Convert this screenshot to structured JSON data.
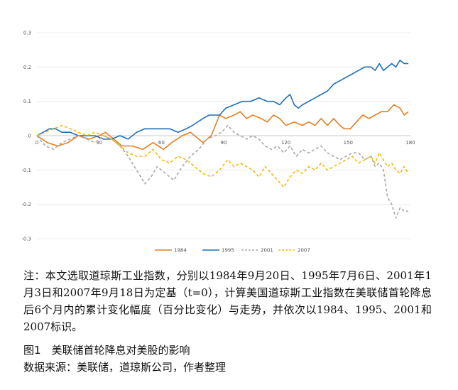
{
  "chart_data": {
    "type": "line",
    "x_ticks": [
      0,
      30,
      60,
      90,
      120,
      150,
      180
    ],
    "y_ticks": [
      0.3,
      0.2,
      0.1,
      0,
      -0.1,
      -0.2,
      -0.3
    ],
    "y_tick_labels": [
      "0.3",
      "0.2",
      "0.1",
      "0",
      "-0.1",
      "-0.2",
      "-0.3"
    ],
    "xlim": [
      0,
      180
    ],
    "ylim": [
      -0.3,
      0.3
    ],
    "grid": "horizontal",
    "legend_position": "bottom",
    "series": [
      {
        "name": "1984",
        "color": "#E67E22",
        "dash": "solid",
        "points": [
          [
            0,
            0
          ],
          [
            5,
            -0.02
          ],
          [
            10,
            -0.03
          ],
          [
            15,
            -0.02
          ],
          [
            20,
            0.0
          ],
          [
            25,
            -0.01
          ],
          [
            30,
            0.0
          ],
          [
            33,
            0.01
          ],
          [
            37,
            -0.01
          ],
          [
            41,
            -0.03
          ],
          [
            46,
            -0.03
          ],
          [
            51,
            -0.04
          ],
          [
            56,
            -0.02
          ],
          [
            61,
            -0.04
          ],
          [
            65,
            -0.02
          ],
          [
            70,
            0.0
          ],
          [
            74,
            0.01
          ],
          [
            78,
            -0.01
          ],
          [
            80,
            -0.02
          ],
          [
            84,
            0.0
          ],
          [
            88,
            0.06
          ],
          [
            91,
            0.05
          ],
          [
            95,
            0.06
          ],
          [
            98,
            0.07
          ],
          [
            101,
            0.05
          ],
          [
            104,
            0.06
          ],
          [
            108,
            0.05
          ],
          [
            111,
            0.04
          ],
          [
            114,
            0.06
          ],
          [
            117,
            0.05
          ],
          [
            120,
            0.03
          ],
          [
            124,
            0.04
          ],
          [
            128,
            0.03
          ],
          [
            131,
            0.04
          ],
          [
            134,
            0.03
          ],
          [
            137,
            0.05
          ],
          [
            140,
            0.03
          ],
          [
            143,
            0.05
          ],
          [
            146,
            0.03
          ],
          [
            148,
            0.02
          ],
          [
            151,
            0.02
          ],
          [
            154,
            0.04
          ],
          [
            157,
            0.06
          ],
          [
            160,
            0.05
          ],
          [
            163,
            0.06
          ],
          [
            166,
            0.07
          ],
          [
            169,
            0.07
          ],
          [
            172,
            0.09
          ],
          [
            175,
            0.08
          ],
          [
            177,
            0.06
          ],
          [
            179,
            0.07
          ]
        ]
      },
      {
        "name": "1995",
        "color": "#1F6FB9",
        "dash": "solid",
        "points": [
          [
            0,
            0
          ],
          [
            3,
            0.01
          ],
          [
            6,
            0.02
          ],
          [
            9,
            0.02
          ],
          [
            12,
            0.01
          ],
          [
            16,
            0.01
          ],
          [
            20,
            0.0
          ],
          [
            24,
            0.0
          ],
          [
            28,
            0.0
          ],
          [
            32,
            -0.01
          ],
          [
            36,
            -0.01
          ],
          [
            40,
            0.0
          ],
          [
            44,
            -0.01
          ],
          [
            48,
            0.01
          ],
          [
            52,
            0.02
          ],
          [
            56,
            0.02
          ],
          [
            60,
            0.02
          ],
          [
            64,
            0.02
          ],
          [
            68,
            0.01
          ],
          [
            72,
            0.02
          ],
          [
            75,
            0.03
          ],
          [
            80,
            0.05
          ],
          [
            83,
            0.06
          ],
          [
            86,
            0.06
          ],
          [
            88,
            0.06
          ],
          [
            91,
            0.08
          ],
          [
            95,
            0.09
          ],
          [
            99,
            0.1
          ],
          [
            103,
            0.1
          ],
          [
            107,
            0.11
          ],
          [
            111,
            0.1
          ],
          [
            114,
            0.1
          ],
          [
            117,
            0.09
          ],
          [
            120,
            0.11
          ],
          [
            122,
            0.12
          ],
          [
            124,
            0.09
          ],
          [
            126,
            0.08
          ],
          [
            128,
            0.09
          ],
          [
            131,
            0.1
          ],
          [
            134,
            0.11
          ],
          [
            137,
            0.12
          ],
          [
            140,
            0.13
          ],
          [
            143,
            0.15
          ],
          [
            146,
            0.16
          ],
          [
            149,
            0.17
          ],
          [
            152,
            0.18
          ],
          [
            155,
            0.19
          ],
          [
            158,
            0.2
          ],
          [
            161,
            0.2
          ],
          [
            163,
            0.19
          ],
          [
            165,
            0.21
          ],
          [
            167,
            0.19
          ],
          [
            169,
            0.2
          ],
          [
            171,
            0.21
          ],
          [
            173,
            0.2
          ],
          [
            175,
            0.22
          ],
          [
            177,
            0.21
          ],
          [
            179,
            0.21
          ]
        ]
      },
      {
        "name": "2001",
        "color": "#A9A9A9",
        "dash": "dashed",
        "points": [
          [
            0,
            0
          ],
          [
            4,
            -0.03
          ],
          [
            8,
            -0.04
          ],
          [
            12,
            -0.02
          ],
          [
            16,
            -0.01
          ],
          [
            20,
            0.0
          ],
          [
            24,
            -0.01
          ],
          [
            28,
            -0.02
          ],
          [
            32,
            0.0
          ],
          [
            36,
            -0.01
          ],
          [
            40,
            -0.03
          ],
          [
            44,
            -0.06
          ],
          [
            48,
            -0.1
          ],
          [
            52,
            -0.14
          ],
          [
            55,
            -0.12
          ],
          [
            58,
            -0.09
          ],
          [
            62,
            -0.11
          ],
          [
            66,
            -0.13
          ],
          [
            70,
            -0.09
          ],
          [
            74,
            -0.06
          ],
          [
            78,
            -0.04
          ],
          [
            82,
            -0.01
          ],
          [
            86,
            0.0
          ],
          [
            89,
            0.01
          ],
          [
            92,
            0.03
          ],
          [
            95,
            0.01
          ],
          [
            98,
            0.0
          ],
          [
            101,
            -0.01
          ],
          [
            104,
            0.0
          ],
          [
            107,
            -0.01
          ],
          [
            110,
            -0.03
          ],
          [
            113,
            -0.04
          ],
          [
            116,
            -0.03
          ],
          [
            119,
            -0.05
          ],
          [
            122,
            -0.03
          ],
          [
            125,
            -0.06
          ],
          [
            128,
            -0.04
          ],
          [
            131,
            -0.05
          ],
          [
            134,
            -0.04
          ],
          [
            137,
            -0.03
          ],
          [
            140,
            -0.05
          ],
          [
            143,
            -0.06
          ],
          [
            146,
            -0.07
          ],
          [
            149,
            -0.06
          ],
          [
            152,
            -0.05
          ],
          [
            155,
            -0.05
          ],
          [
            158,
            -0.07
          ],
          [
            161,
            -0.06
          ],
          [
            163,
            -0.09
          ],
          [
            165,
            -0.08
          ],
          [
            167,
            -0.1
          ],
          [
            169,
            -0.18
          ],
          [
            171,
            -0.2
          ],
          [
            173,
            -0.24
          ],
          [
            175,
            -0.21
          ],
          [
            177,
            -0.22
          ],
          [
            179,
            -0.22
          ]
        ]
      },
      {
        "name": "2007",
        "color": "#F2B80F",
        "dash": "dashed",
        "points": [
          [
            0,
            0
          ],
          [
            4,
            0.01
          ],
          [
            8,
            0.02
          ],
          [
            12,
            0.03
          ],
          [
            16,
            0.02
          ],
          [
            20,
            0.01
          ],
          [
            24,
            0.0
          ],
          [
            28,
            0.01
          ],
          [
            32,
            0.0
          ],
          [
            36,
            -0.01
          ],
          [
            40,
            -0.03
          ],
          [
            44,
            -0.05
          ],
          [
            48,
            -0.06
          ],
          [
            52,
            -0.06
          ],
          [
            56,
            -0.04
          ],
          [
            60,
            -0.07
          ],
          [
            64,
            -0.08
          ],
          [
            68,
            -0.06
          ],
          [
            72,
            -0.07
          ],
          [
            76,
            -0.09
          ],
          [
            80,
            -0.11
          ],
          [
            84,
            -0.12
          ],
          [
            88,
            -0.1
          ],
          [
            92,
            -0.07
          ],
          [
            95,
            -0.09
          ],
          [
            98,
            -0.08
          ],
          [
            101,
            -0.09
          ],
          [
            104,
            -0.1
          ],
          [
            107,
            -0.12
          ],
          [
            110,
            -0.09
          ],
          [
            113,
            -0.11
          ],
          [
            116,
            -0.13
          ],
          [
            119,
            -0.15
          ],
          [
            122,
            -0.12
          ],
          [
            125,
            -0.1
          ],
          [
            128,
            -0.11
          ],
          [
            131,
            -0.09
          ],
          [
            134,
            -0.1
          ],
          [
            137,
            -0.08
          ],
          [
            140,
            -0.1
          ],
          [
            143,
            -0.09
          ],
          [
            146,
            -0.08
          ],
          [
            149,
            -0.07
          ],
          [
            152,
            -0.06
          ],
          [
            155,
            -0.08
          ],
          [
            158,
            -0.07
          ],
          [
            161,
            -0.06
          ],
          [
            163,
            -0.08
          ],
          [
            165,
            -0.05
          ],
          [
            167,
            -0.07
          ],
          [
            169,
            -0.09
          ],
          [
            171,
            -0.08
          ],
          [
            173,
            -0.1
          ],
          [
            175,
            -0.11
          ],
          [
            177,
            -0.09
          ],
          [
            179,
            -0.11
          ]
        ]
      }
    ]
  },
  "note": "注：本文选取道琼斯工业指数，分别以1984年9月20日、1995年7月6日、2001年1月3日和2007年9月18日为定基（t=0），计算美国道琼斯工业指数在美联储首轮降息后6个月内的累计变化幅度（百分比变化）与走势，并依次以1984、1995、2001和2007标识。",
  "caption": "图1　美联储首轮降息对美股的影响",
  "source": "数据来源：美联储，道琼斯公司，作者整理"
}
